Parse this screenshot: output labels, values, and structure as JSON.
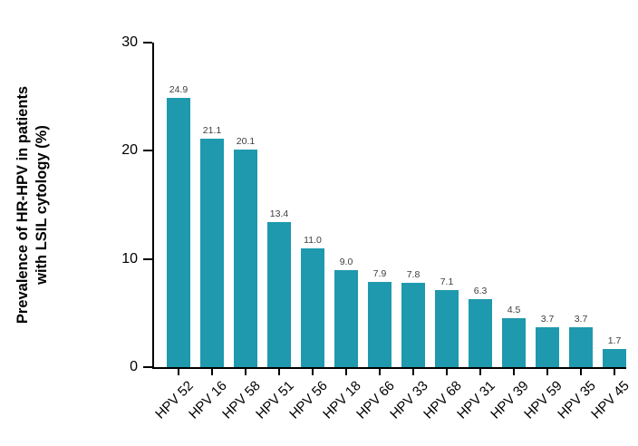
{
  "figure": {
    "background": "#ffffff"
  },
  "chart_data": {
    "type": "bar",
    "title": "",
    "xlabel": "",
    "ylabel_line1": "Prevalence of HR-HPV in patients",
    "ylabel_line2": "with LSIL cytology (%)",
    "categories": [
      "HPV 52",
      "HPV 16",
      "HPV 58",
      "HPV 51",
      "HPV 56",
      "HPV 18",
      "HPV 66",
      "HPV 33",
      "HPV 68",
      "HPV 31",
      "HPV 39",
      "HPV 59",
      "HPV 35",
      "HPV 45"
    ],
    "values": [
      24.9,
      21.1,
      20.1,
      13.4,
      11.0,
      9.0,
      7.9,
      7.8,
      7.1,
      6.3,
      4.5,
      3.7,
      3.7,
      1.7
    ],
    "value_labels": [
      "24.9",
      "21.1",
      "20.1",
      "13.4",
      "11.0",
      "9.0",
      "7.9",
      "7.8",
      "7.1",
      "6.3",
      "4.5",
      "3.7",
      "3.7",
      "1.7"
    ],
    "yticks": [
      0,
      10,
      20,
      30
    ],
    "ylim": [
      0,
      30
    ],
    "bar_color": "#1E99AE",
    "axis_color": "#000000",
    "value_label_color": "#3d3d3d",
    "grid": "off",
    "legend": "none"
  }
}
